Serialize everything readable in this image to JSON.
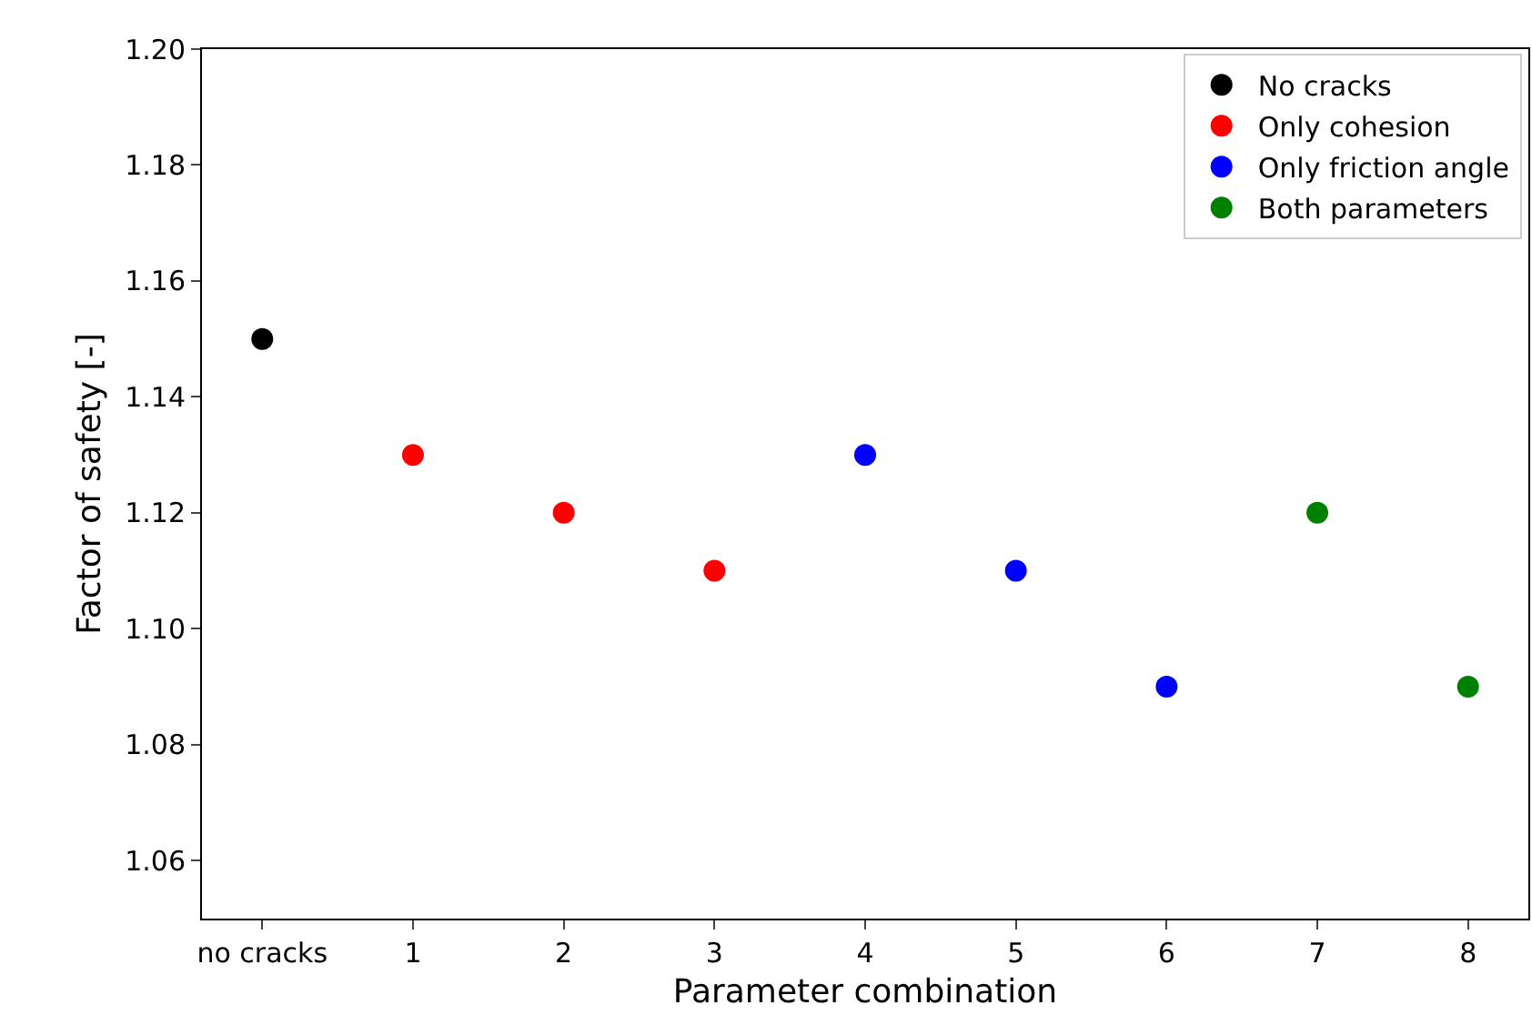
{
  "chart_data": {
    "type": "scatter",
    "xlabel": "Parameter combination",
    "ylabel": "Factor of safety [-]",
    "categories": [
      "no cracks",
      "1",
      "2",
      "3",
      "4",
      "5",
      "6",
      "7",
      "8"
    ],
    "series": [
      {
        "name": "No cracks",
        "color": "#000000",
        "values": [
          1.15,
          null,
          null,
          null,
          null,
          null,
          null,
          null,
          null
        ]
      },
      {
        "name": "Only cohesion",
        "color": "#ff0000",
        "values": [
          null,
          1.13,
          1.12,
          1.11,
          null,
          null,
          null,
          null,
          null
        ]
      },
      {
        "name": "Only friction angle",
        "color": "#0000ff",
        "values": [
          null,
          null,
          null,
          null,
          1.13,
          1.11,
          1.09,
          null,
          null
        ]
      },
      {
        "name": "Both parameters",
        "color": "#008000",
        "values": [
          null,
          null,
          null,
          null,
          null,
          null,
          null,
          1.12,
          1.09
        ]
      }
    ],
    "ylim": [
      1.05,
      1.2
    ],
    "yticks": [
      1.06,
      1.08,
      {
        "value": 1.1,
        "label": "1.10"
      },
      1.12,
      1.14,
      1.16,
      1.18,
      {
        "value": 1.2,
        "label": "1.20"
      }
    ],
    "grid": false,
    "legend": "top right",
    "marker": "circle"
  }
}
